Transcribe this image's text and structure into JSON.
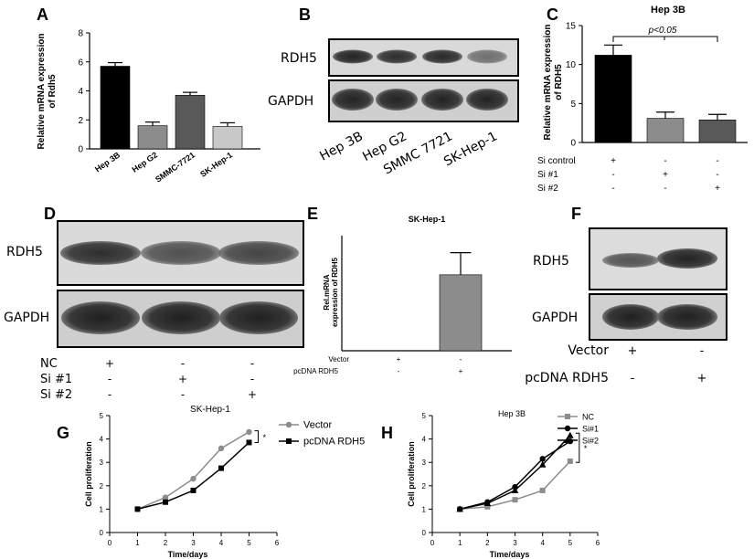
{
  "panels": {
    "A": {
      "letter": "A",
      "ylabel": [
        "Relative mRNA expression",
        "of Rdh5"
      ],
      "ticks": [
        "0",
        "2",
        "4",
        "6",
        "8"
      ],
      "chart_data": {
        "type": "bar",
        "categories": [
          "Hep 3B",
          "Hep G2",
          "SMMC-7721",
          "SK-Hep-1"
        ],
        "values": [
          5.7,
          1.6,
          3.7,
          1.55
        ],
        "errors": [
          0.25,
          0.25,
          0.2,
          0.25
        ],
        "colors": [
          "#000000",
          "#8c8c8c",
          "#595959",
          "#c8c8c8"
        ],
        "ylim": [
          0,
          8
        ]
      }
    },
    "B": {
      "letter": "B",
      "rows": [
        "RDH5",
        "GAPDH"
      ],
      "lanes": [
        "Hep 3B",
        "Hep G2",
        "SMMC 7721",
        "SK-Hep-1"
      ]
    },
    "C": {
      "letter": "C",
      "title": "Hep 3B",
      "ylabel": [
        "Relative mRNA expression",
        "of RDH5"
      ],
      "pvalue": "p<0.05",
      "ticks": [
        "0",
        "5",
        "10",
        "15"
      ],
      "conditions": [
        {
          "name": "Si control",
          "marks": [
            "+",
            "-",
            "-"
          ]
        },
        {
          "name": "Si #1",
          "marks": [
            "-",
            "+",
            "-"
          ]
        },
        {
          "name": "Si #2",
          "marks": [
            "-",
            "-",
            "+"
          ]
        }
      ],
      "chart_data": {
        "type": "bar",
        "categories": [
          "Si control",
          "Si #1",
          "Si #2"
        ],
        "values": [
          11.2,
          3.1,
          2.9
        ],
        "errors": [
          1.3,
          0.8,
          0.7
        ],
        "colors": [
          "#000000",
          "#8c8c8c",
          "#595959"
        ],
        "ylim": [
          0,
          15
        ]
      }
    },
    "D": {
      "letter": "D",
      "rows": [
        "RDH5",
        "GAPDH"
      ],
      "conditions": [
        {
          "name": "NC",
          "marks": [
            "+",
            "-",
            "-"
          ]
        },
        {
          "name": "Si #1",
          "marks": [
            "-",
            "+",
            "-"
          ]
        },
        {
          "name": "Si #2",
          "marks": [
            "-",
            "-",
            "+"
          ]
        }
      ],
      "footer": "SK-Hep-1"
    },
    "E": {
      "letter": "E",
      "title": "SK-Hep-1",
      "ylabel": [
        "Rel.mRNA",
        "expression of RDH5"
      ],
      "conditions": [
        {
          "name": "Vector",
          "marks": [
            "+",
            "-"
          ]
        },
        {
          "name": "pcDNA RDH5",
          "marks": [
            "-",
            "+"
          ]
        }
      ],
      "chart_data": {
        "type": "bar",
        "categories": [
          "Vector",
          "pcDNA RDH5"
        ],
        "values": [
          0,
          1.65
        ],
        "errors": [
          0,
          0.48
        ],
        "colors": [
          "#000000",
          "#8c8c8c"
        ],
        "ylim": [
          0,
          2.5
        ]
      }
    },
    "F": {
      "letter": "F",
      "rows": [
        "RDH5",
        "GAPDH"
      ],
      "conditions": [
        {
          "name": "Vector",
          "marks": [
            "+",
            "-"
          ]
        },
        {
          "name": "pcDNA RDH5",
          "marks": [
            "-",
            "+"
          ]
        }
      ]
    },
    "G": {
      "letter": "G",
      "star": "*",
      "chart_data": {
        "type": "line",
        "x": [
          1,
          2,
          3,
          4,
          5
        ],
        "series": [
          {
            "name": "Vector",
            "values": [
              1.0,
              1.5,
              2.3,
              3.6,
              4.3
            ],
            "color": "#8c8c8c",
            "marker": "circle"
          },
          {
            "name": "pcDNA RDH5",
            "values": [
              1.0,
              1.3,
              1.8,
              2.75,
              3.85
            ],
            "color": "#000000",
            "marker": "square"
          }
        ],
        "xlabel": "Time/days",
        "ylabel": "Cell proliferation",
        "xlim": [
          0,
          6
        ],
        "ylim": [
          0,
          5
        ],
        "xticks": [
          "0",
          "1",
          "2",
          "3",
          "4",
          "5",
          "6"
        ],
        "yticks": [
          "0",
          "1",
          "2",
          "3",
          "4",
          "5"
        ]
      }
    },
    "H": {
      "letter": "H",
      "title": "Hep 3B",
      "star": "*",
      "chart_data": {
        "type": "line",
        "x": [
          1,
          2,
          3,
          4,
          5
        ],
        "series": [
          {
            "name": "NC",
            "values": [
              1.0,
              1.1,
              1.4,
              1.8,
              3.05
            ],
            "color": "#8c8c8c",
            "marker": "square"
          },
          {
            "name": "Si#1",
            "values": [
              1.0,
              1.3,
              1.95,
              3.15,
              3.9
            ],
            "color": "#000000",
            "marker": "circle"
          },
          {
            "name": "Si#2",
            "values": [
              1.0,
              1.25,
              1.8,
              2.9,
              4.15
            ],
            "color": "#000000",
            "marker": "triangle"
          }
        ],
        "xlabel": "Time/days",
        "ylabel": "Cell proliferation",
        "xlim": [
          0,
          6
        ],
        "ylim": [
          0,
          5
        ],
        "xticks": [
          "0",
          "1",
          "2",
          "3",
          "4",
          "5",
          "6"
        ],
        "yticks": [
          "0",
          "1",
          "2",
          "3",
          "4",
          "5"
        ]
      }
    }
  }
}
